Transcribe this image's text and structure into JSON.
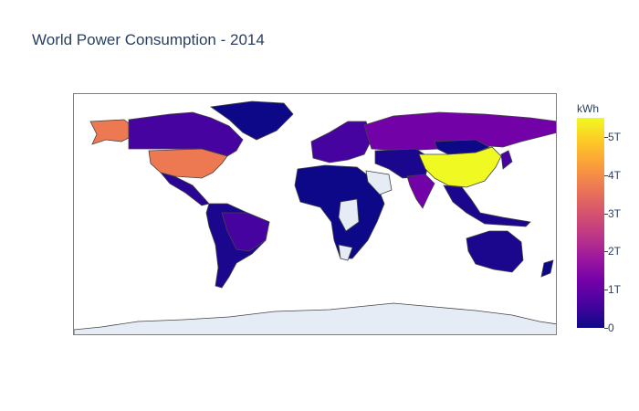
{
  "title": "World Power Consumption - 2014",
  "colorbar": {
    "title": "kWh",
    "ticks": [
      "5T",
      "4T",
      "3T",
      "2T",
      "1T",
      "0"
    ],
    "tick_values": [
      5,
      4,
      3,
      2,
      1,
      0
    ],
    "max": 5.5
  },
  "colors": {
    "no_data": "#e5ecf6",
    "border": "#444444",
    "frame": "#7f7f7f"
  },
  "chart_data": {
    "type": "choropleth",
    "locationmode": "world countries",
    "z_unit": "kWh",
    "colorscale": "plasma",
    "zrange": [
      0,
      5.5
    ],
    "regions": [
      {
        "region": "China",
        "value": 5.5
      },
      {
        "region": "United States",
        "value": 3.9
      },
      {
        "region": "Russia",
        "value": 1.0
      },
      {
        "region": "India",
        "value": 1.1
      },
      {
        "region": "Canada",
        "value": 0.55
      },
      {
        "region": "Brazil",
        "value": 0.5
      },
      {
        "region": "Australia",
        "value": 0.24
      },
      {
        "region": "Mexico",
        "value": 0.26
      },
      {
        "region": "Argentina",
        "value": 0.13
      },
      {
        "region": "Europe",
        "value": 0.5
      },
      {
        "region": "Africa",
        "value": 0.05
      },
      {
        "region": "Middle East",
        "value": 0.3
      },
      {
        "region": "Southeast Asia",
        "value": 0.2
      }
    ]
  }
}
